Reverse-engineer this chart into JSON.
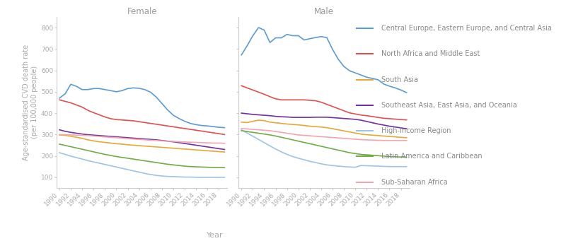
{
  "years": [
    1990,
    1991,
    1992,
    1993,
    1994,
    1995,
    1996,
    1997,
    1998,
    1999,
    2000,
    2001,
    2002,
    2003,
    2004,
    2005,
    2006,
    2007,
    2008,
    2009,
    2010,
    2011,
    2012,
    2013,
    2014,
    2015,
    2016,
    2017,
    2018,
    2019
  ],
  "regions": [
    "Central Europe, Eastern Europe, and Central Asia",
    "North Africa and Middle East",
    "South Asia",
    "Southeast Asia, East Asia, and Oceania",
    "High-Income Region",
    "Latin America and Caribbean",
    "Sub-Saharan Africa"
  ],
  "colors": [
    "#5b9bd5",
    "#e05050",
    "#e8a832",
    "#7030a0",
    "#9dc3e6",
    "#70ad47",
    "#f4a5b0"
  ],
  "female": [
    [
      470,
      490,
      535,
      525,
      510,
      510,
      515,
      515,
      510,
      505,
      500,
      505,
      515,
      518,
      516,
      510,
      498,
      475,
      445,
      415,
      390,
      375,
      362,
      352,
      346,
      342,
      340,
      337,
      334,
      332
    ],
    [
      462,
      455,
      448,
      438,
      428,
      413,
      402,
      392,
      382,
      374,
      370,
      368,
      366,
      364,
      360,
      356,
      352,
      348,
      344,
      340,
      336,
      332,
      328,
      324,
      320,
      316,
      312,
      308,
      304,
      300
    ],
    [
      298,
      296,
      292,
      287,
      282,
      275,
      270,
      266,
      263,
      260,
      257,
      255,
      252,
      250,
      248,
      246,
      244,
      242,
      240,
      238,
      236,
      234,
      232,
      230,
      228,
      226,
      224,
      222,
      220,
      218
    ],
    [
      322,
      315,
      310,
      306,
      302,
      299,
      297,
      295,
      293,
      291,
      289,
      287,
      285,
      283,
      281,
      279,
      277,
      275,
      272,
      269,
      266,
      262,
      258,
      254,
      250,
      246,
      242,
      238,
      234,
      230
    ],
    [
      215,
      207,
      199,
      192,
      185,
      178,
      172,
      166,
      160,
      154,
      148,
      142,
      136,
      130,
      124,
      118,
      113,
      109,
      106,
      104,
      103,
      102,
      101,
      101,
      100,
      100,
      100,
      100,
      100,
      100
    ],
    [
      255,
      249,
      243,
      237,
      231,
      225,
      219,
      213,
      207,
      202,
      197,
      193,
      189,
      185,
      181,
      177,
      173,
      169,
      165,
      161,
      158,
      155,
      152,
      150,
      149,
      148,
      147,
      146,
      146,
      145
    ],
    [
      300,
      299,
      298,
      297,
      296,
      295,
      293,
      291,
      289,
      287,
      285,
      283,
      281,
      279,
      277,
      275,
      273,
      272,
      270,
      269,
      268,
      266,
      265,
      264,
      263,
      262,
      261,
      260,
      260,
      259
    ]
  ],
  "male": [
    [
      672,
      715,
      762,
      800,
      788,
      730,
      752,
      752,
      768,
      762,
      762,
      742,
      748,
      753,
      758,
      753,
      698,
      652,
      618,
      598,
      588,
      578,
      568,
      562,
      556,
      536,
      526,
      518,
      508,
      496
    ],
    [
      528,
      518,
      508,
      498,
      488,
      477,
      467,
      462,
      462,
      462,
      462,
      462,
      460,
      458,
      451,
      441,
      431,
      421,
      411,
      401,
      396,
      391,
      388,
      384,
      380,
      376,
      374,
      372,
      370,
      368
    ],
    [
      358,
      356,
      362,
      367,
      365,
      358,
      355,
      352,
      349,
      347,
      345,
      342,
      339,
      337,
      335,
      332,
      327,
      322,
      317,
      312,
      307,
      302,
      299,
      297,
      295,
      293,
      291,
      289,
      287,
      285
    ],
    [
      400,
      397,
      394,
      392,
      390,
      388,
      385,
      383,
      382,
      380,
      380,
      380,
      380,
      381,
      381,
      381,
      379,
      377,
      375,
      373,
      371,
      367,
      361,
      355,
      349,
      344,
      339,
      335,
      331,
      327
    ],
    [
      322,
      307,
      292,
      277,
      262,
      247,
      232,
      219,
      207,
      197,
      189,
      182,
      175,
      169,
      163,
      158,
      155,
      152,
      150,
      148,
      147,
      155,
      154,
      153,
      152,
      151,
      150,
      150,
      150,
      150
    ],
    [
      318,
      314,
      310,
      306,
      302,
      298,
      293,
      287,
      281,
      275,
      269,
      263,
      257,
      251,
      245,
      239,
      233,
      227,
      221,
      215,
      211,
      207,
      205,
      203,
      201,
      199,
      197,
      196,
      195,
      194
    ],
    [
      328,
      326,
      324,
      322,
      320,
      318,
      314,
      310,
      306,
      302,
      298,
      296,
      294,
      292,
      290,
      288,
      286,
      284,
      282,
      280,
      278,
      276,
      275,
      274,
      273,
      272,
      272,
      272,
      272,
      272
    ]
  ],
  "ylim": [
    50,
    850
  ],
  "yticks": [
    100,
    200,
    300,
    400,
    500,
    600,
    700,
    800
  ],
  "xtick_years": [
    1990,
    1992,
    1994,
    1996,
    1998,
    2000,
    2002,
    2004,
    2006,
    2008,
    2010,
    2012,
    2014,
    2016,
    2018
  ],
  "panel_titles": [
    "Female",
    "Male"
  ],
  "ylabel": "Age-standardised CVD death rate\n(per 100,000 people)",
  "xlabel": "Year",
  "line_width": 1.2,
  "title_color": "#999999",
  "label_color": "#aaaaaa",
  "spine_color": "#cccccc",
  "legend_label_color": "#888888"
}
